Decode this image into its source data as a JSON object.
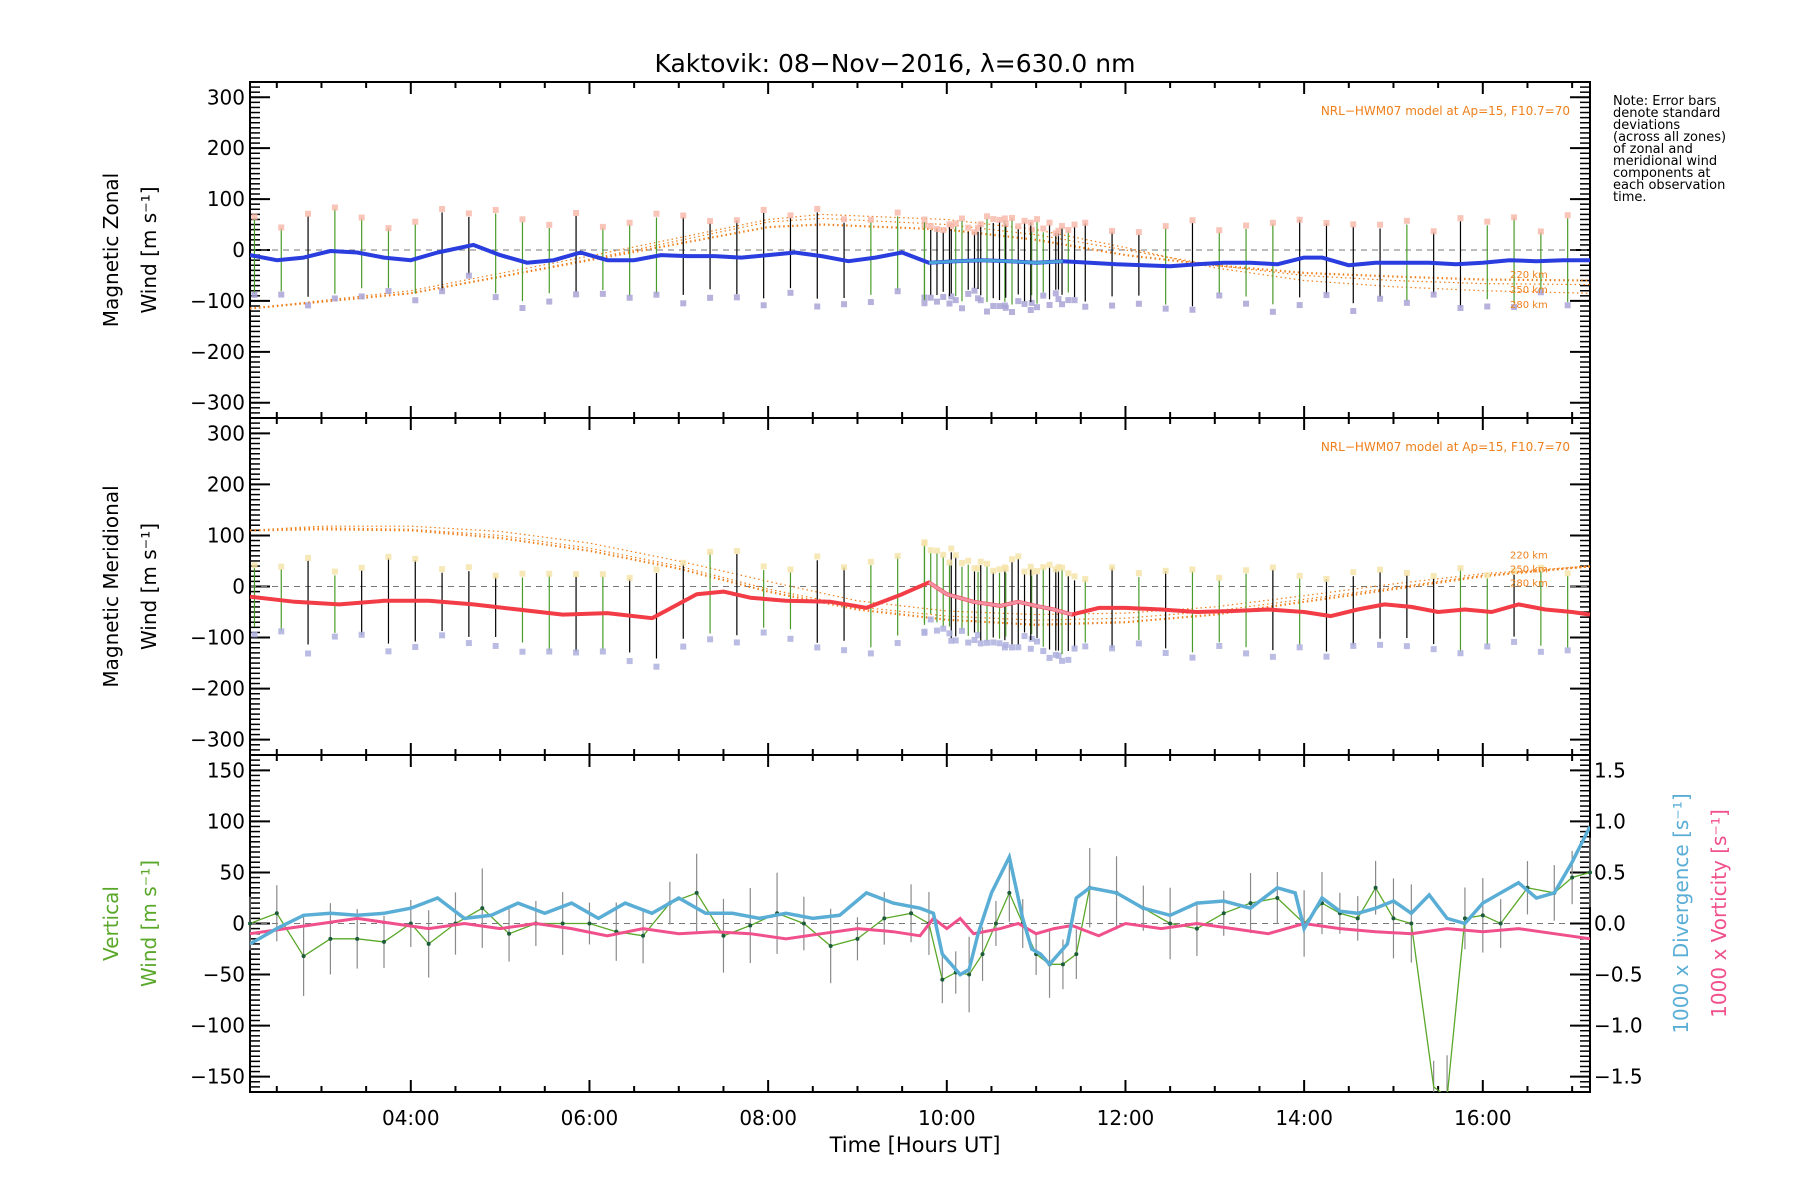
{
  "chart_data": {
    "type": "line",
    "title": "Kaktovik: 08−Nov−2016, λ=630.0 nm",
    "xlabel": "Time [Hours UT]",
    "xlim": [
      2.2,
      17.2
    ],
    "x_ticks": [
      4,
      6,
      8,
      10,
      12,
      14,
      16
    ],
    "x_tick_labels": [
      "04:00",
      "06:00",
      "08:00",
      "10:00",
      "12:00",
      "14:00",
      "16:00"
    ],
    "note": [
      "Note: Error bars",
      "denote standard",
      "deviations",
      "(across all zones)",
      "of zonal and",
      "meridional wind",
      "components at",
      "each observation",
      "time."
    ],
    "panels": [
      {
        "id": "zonal",
        "ylabel_lines": [
          "Magnetic Zonal",
          "Wind [m s⁻¹]"
        ],
        "ylim": [
          -330,
          330
        ],
        "y_ticks": [
          300,
          200,
          100,
          0,
          -100,
          -200,
          -300
        ],
        "y_tick_labels": [
          "300",
          "200",
          "100",
          "0",
          "−100",
          "−200",
          "−300"
        ],
        "model_label": "NRL−HWM07 model at Ap=15, F10.7=70",
        "model_alt_labels": [
          "220 km",
          "250 km",
          "280 km"
        ],
        "colors": {
          "main": "#2a3dde",
          "dense": "#4aa3d8",
          "model": "#ef7f1a",
          "err": "#000000",
          "err_green": "#4a9a2a",
          "scatter_a": "#a9a5d6",
          "scatter_b": "#f7b7a8"
        },
        "series": [
          {
            "name": "Magnetic Zonal Wind",
            "x": [
              2.2,
              2.5,
              2.8,
              3.1,
              3.4,
              3.7,
              4.0,
              4.3,
              4.7,
              5.0,
              5.3,
              5.6,
              5.9,
              6.2,
              6.5,
              6.8,
              7.1,
              7.4,
              7.7,
              8.0,
              8.3,
              8.6,
              8.9,
              9.2,
              9.5,
              9.8,
              10.1,
              10.4,
              10.7,
              11.0,
              11.3,
              11.6,
              11.9,
              12.2,
              12.5,
              12.8,
              13.1,
              13.4,
              13.7,
              14.0,
              14.2,
              14.5,
              14.8,
              15.1,
              15.4,
              15.7,
              16.0,
              16.3,
              16.6,
              16.9,
              17.2
            ],
            "y": [
              -10,
              -20,
              -15,
              -2,
              -5,
              -15,
              -20,
              -5,
              10,
              -10,
              -25,
              -20,
              -5,
              -20,
              -20,
              -10,
              -12,
              -12,
              -15,
              -10,
              -5,
              -12,
              -22,
              -15,
              -5,
              -25,
              -22,
              -20,
              -22,
              -25,
              -22,
              -25,
              -28,
              -30,
              -32,
              -28,
              -25,
              -25,
              -28,
              -15,
              -15,
              -30,
              -25,
              -25,
              -25,
              -28,
              -25,
              -20,
              -22,
              -20,
              -20
            ]
          },
          {
            "name": "NRL-HWM07 220 km",
            "x": [
              2.2,
              4.0,
              6.0,
              8.0,
              8.6,
              10.0,
              11.0,
              12.0,
              13.0,
              14.0,
              15.0,
              16.0,
              17.2
            ],
            "y": [
              -115,
              -85,
              -20,
              45,
              50,
              40,
              20,
              -10,
              -30,
              -45,
              -52,
              -58,
              -60
            ]
          },
          {
            "name": "NRL-HWM07 250 km",
            "x": [
              2.2,
              4.0,
              6.0,
              8.0,
              8.6,
              10.0,
              11.0,
              12.0,
              13.0,
              14.0,
              15.0,
              16.0,
              17.2
            ],
            "y": [
              -115,
              -85,
              -18,
              55,
              62,
              50,
              30,
              0,
              -30,
              -50,
              -60,
              -66,
              -68
            ]
          },
          {
            "name": "NRL-HWM07 280 km",
            "x": [
              2.2,
              4.0,
              6.0,
              8.0,
              8.6,
              10.0,
              11.0,
              12.0,
              13.0,
              14.0,
              15.0,
              16.0,
              17.2
            ],
            "y": [
              -115,
              -80,
              -12,
              60,
              70,
              60,
              40,
              5,
              -35,
              -60,
              -72,
              -80,
              -85
            ]
          }
        ]
      },
      {
        "id": "meridional",
        "ylabel_lines": [
          "Magnetic Meridional",
          "Wind [m s⁻¹]"
        ],
        "ylim": [
          -330,
          330
        ],
        "y_ticks": [
          300,
          200,
          100,
          0,
          -100,
          -200,
          -300
        ],
        "y_tick_labels": [
          "300",
          "200",
          "100",
          "0",
          "−100",
          "−200",
          "−300"
        ],
        "model_label": "NRL−HWM07 model at Ap=15, F10.7=70",
        "model_alt_labels": [
          "220 km",
          "250 km",
          "280 km"
        ],
        "colors": {
          "main": "#f23c46",
          "dense": "#f18fa3",
          "model": "#ef7f1a",
          "err": "#000000",
          "err_green": "#4a9a2a",
          "scatter_a": "#aeb0de",
          "scatter_b": "#f5e2a6"
        },
        "series": [
          {
            "name": "Magnetic Meridional Wind",
            "x": [
              2.2,
              2.7,
              3.2,
              3.7,
              4.2,
              4.7,
              5.2,
              5.7,
              6.2,
              6.7,
              7.2,
              7.5,
              7.8,
              8.2,
              8.7,
              9.1,
              9.5,
              9.8,
              10.0,
              10.3,
              10.6,
              10.8,
              11.0,
              11.2,
              11.4,
              11.7,
              12.0,
              12.4,
              12.8,
              13.2,
              13.6,
              14.0,
              14.3,
              14.6,
              14.9,
              15.2,
              15.5,
              15.8,
              16.1,
              16.4,
              16.7,
              17.0,
              17.2
            ],
            "y": [
              -20,
              -30,
              -35,
              -28,
              -28,
              -35,
              -45,
              -55,
              -52,
              -62,
              -15,
              -10,
              -22,
              -28,
              -30,
              -42,
              -15,
              8,
              -15,
              -30,
              -38,
              -30,
              -38,
              -45,
              -55,
              -42,
              -42,
              -45,
              -50,
              -48,
              -45,
              -50,
              -58,
              -45,
              -35,
              -40,
              -50,
              -45,
              -50,
              -35,
              -45,
              -50,
              -55
            ]
          },
          {
            "name": "NRL-HWM07 220 km",
            "x": [
              2.2,
              3.0,
              4.0,
              5.0,
              6.0,
              7.0,
              8.0,
              9.0,
              10.0,
              11.0,
              12.0,
              13.0,
              14.0,
              15.0,
              16.0,
              17.2
            ],
            "y": [
              110,
              112,
              110,
              95,
              70,
              35,
              -10,
              -45,
              -65,
              -75,
              -70,
              -55,
              -30,
              -5,
              20,
              40
            ]
          },
          {
            "name": "NRL-HWM07 250 km",
            "x": [
              2.2,
              3.0,
              4.0,
              5.0,
              6.0,
              7.0,
              8.0,
              9.0,
              10.0,
              11.0,
              12.0,
              13.0,
              14.0,
              15.0,
              16.0,
              17.2
            ],
            "y": [
              110,
              115,
              112,
              100,
              75,
              40,
              -5,
              -40,
              -58,
              -66,
              -62,
              -48,
              -25,
              -2,
              22,
              38
            ]
          },
          {
            "name": "NRL-HWM07 280 km",
            "x": [
              2.2,
              3.0,
              4.0,
              5.0,
              6.0,
              7.0,
              8.0,
              9.0,
              10.0,
              11.0,
              12.0,
              13.0,
              14.0,
              15.0,
              16.0,
              17.2
            ],
            "y": [
              110,
              118,
              118,
              108,
              85,
              50,
              10,
              -28,
              -48,
              -55,
              -52,
              -40,
              -18,
              5,
              25,
              40
            ]
          }
        ]
      },
      {
        "id": "vertical",
        "ylabel_lines": [
          "Vertical",
          "Wind [m s⁻¹]"
        ],
        "ylim": [
          -165,
          165
        ],
        "y_ticks": [
          150,
          100,
          50,
          0,
          -50,
          -100,
          -150
        ],
        "y_tick_labels": [
          "150",
          "100",
          "50",
          "0",
          "−50",
          "−100",
          "−150"
        ],
        "y2_label_lines": [
          "1000 x Divergence [s⁻¹]",
          "1000 x Vorticity [s⁻¹]"
        ],
        "y2lim": [
          -1.65,
          1.65
        ],
        "y2_ticks": [
          1.5,
          1.0,
          0.5,
          0.0,
          -0.5,
          -1.0,
          -1.5
        ],
        "y2_tick_labels": [
          "1.5",
          "1.0",
          "0.5",
          "0.0",
          "−0.5",
          "−1.0",
          "−1.5"
        ],
        "colors": {
          "vertical": "#5aa82a",
          "divergence": "#5aaed6",
          "vorticity": "#f0508c",
          "err": "#8a8a8a"
        },
        "series": [
          {
            "name": "Vertical Wind",
            "axis": "left",
            "x": [
              2.2,
              2.5,
              2.8,
              3.1,
              3.4,
              3.7,
              4.0,
              4.2,
              4.5,
              4.8,
              5.1,
              5.4,
              5.7,
              6.0,
              6.3,
              6.6,
              6.9,
              7.2,
              7.5,
              7.8,
              8.1,
              8.4,
              8.7,
              9.0,
              9.3,
              9.6,
              9.8,
              9.95,
              10.1,
              10.25,
              10.4,
              10.55,
              10.7,
              10.85,
              11.0,
              11.15,
              11.3,
              11.45,
              11.6,
              11.9,
              12.2,
              12.5,
              12.8,
              13.1,
              13.4,
              13.7,
              14.0,
              14.2,
              14.4,
              14.6,
              14.8,
              15.0,
              15.2,
              15.45,
              15.6,
              15.8,
              16.0,
              16.2,
              16.5,
              16.8,
              17.0,
              17.2
            ],
            "y": [
              0,
              10,
              -32,
              -15,
              -15,
              -18,
              0,
              -20,
              0,
              15,
              -10,
              0,
              0,
              0,
              -8,
              -12,
              20,
              30,
              -12,
              -2,
              10,
              0,
              -22,
              -15,
              5,
              10,
              0,
              -55,
              -48,
              -50,
              -30,
              0,
              30,
              0,
              -30,
              -40,
              -40,
              -30,
              35,
              30,
              15,
              0,
              -5,
              10,
              20,
              25,
              0,
              20,
              10,
              5,
              35,
              5,
              0,
              -160,
              -170,
              5,
              8,
              0,
              35,
              30,
              45,
              50
            ]
          },
          {
            "name": "1000 x Divergence",
            "axis": "right",
            "x": [
              2.2,
              2.5,
              2.8,
              3.1,
              3.4,
              3.7,
              4.0,
              4.3,
              4.6,
              4.9,
              5.2,
              5.5,
              5.8,
              6.1,
              6.4,
              6.7,
              7.0,
              7.3,
              7.6,
              7.9,
              8.2,
              8.5,
              8.8,
              9.1,
              9.4,
              9.7,
              9.85,
              9.95,
              10.05,
              10.15,
              10.25,
              10.35,
              10.5,
              10.7,
              10.85,
              10.95,
              11.05,
              11.15,
              11.25,
              11.35,
              11.45,
              11.6,
              11.9,
              12.2,
              12.5,
              12.8,
              13.1,
              13.4,
              13.7,
              13.9,
              14.0,
              14.2,
              14.4,
              14.6,
              14.8,
              15.0,
              15.2,
              15.4,
              15.6,
              15.8,
              16.0,
              16.2,
              16.4,
              16.6,
              16.8,
              17.0,
              17.2
            ],
            "y": [
              -0.2,
              -0.05,
              0.08,
              0.1,
              0.08,
              0.1,
              0.15,
              0.25,
              0.05,
              0.08,
              0.2,
              0.1,
              0.2,
              0.05,
              0.2,
              0.1,
              0.25,
              0.1,
              0.1,
              0.05,
              0.1,
              0.05,
              0.08,
              0.3,
              0.2,
              0.15,
              0.1,
              -0.3,
              -0.4,
              -0.5,
              -0.45,
              -0.1,
              0.3,
              0.65,
              0.05,
              -0.25,
              -0.3,
              -0.4,
              -0.3,
              -0.2,
              0.25,
              0.35,
              0.3,
              0.15,
              0.08,
              0.2,
              0.22,
              0.15,
              0.35,
              0.3,
              -0.05,
              0.25,
              0.12,
              0.1,
              0.15,
              0.22,
              0.1,
              0.28,
              0.05,
              0.0,
              0.2,
              0.3,
              0.4,
              0.25,
              0.3,
              0.6,
              0.95
            ]
          },
          {
            "name": "1000 x Vorticity",
            "axis": "right",
            "x": [
              2.2,
              2.6,
              3.0,
              3.4,
              3.8,
              4.2,
              4.6,
              5.0,
              5.4,
              5.8,
              6.2,
              6.6,
              7.0,
              7.4,
              7.8,
              8.2,
              8.6,
              9.0,
              9.4,
              9.7,
              9.85,
              10.0,
              10.15,
              10.3,
              10.6,
              10.8,
              11.0,
              11.2,
              11.4,
              11.7,
              12.0,
              12.4,
              12.8,
              13.2,
              13.6,
              14.0,
              14.4,
              14.8,
              15.2,
              15.6,
              16.0,
              16.4,
              16.8,
              17.2
            ],
            "y": [
              -0.1,
              -0.05,
              0.0,
              0.05,
              0.0,
              -0.05,
              0.0,
              -0.05,
              0.0,
              -0.05,
              -0.12,
              -0.05,
              -0.1,
              -0.08,
              -0.1,
              -0.15,
              -0.1,
              -0.05,
              -0.08,
              -0.12,
              0.05,
              -0.05,
              0.05,
              -0.1,
              -0.05,
              0.0,
              -0.1,
              -0.05,
              -0.02,
              -0.12,
              0.0,
              -0.05,
              0.0,
              -0.05,
              -0.1,
              0.0,
              -0.05,
              -0.08,
              -0.1,
              -0.05,
              -0.08,
              -0.05,
              -0.1,
              -0.15
            ]
          }
        ]
      }
    ]
  }
}
